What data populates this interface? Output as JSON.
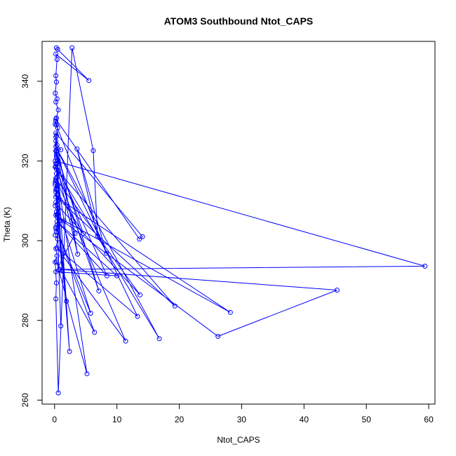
{
  "chart_data": {
    "type": "line",
    "title": "ATOM3 Southbound Ntot_CAPS",
    "xlabel": "Ntot_CAPS",
    "ylabel": "Theta (K)",
    "xlim": [
      -2,
      61
    ],
    "ylim": [
      259,
      350
    ],
    "xticks": [
      0,
      10,
      20,
      30,
      40,
      50,
      60
    ],
    "yticks": [
      260,
      280,
      300,
      320,
      340
    ],
    "grid": false,
    "color": "#0000ff",
    "series": [
      {
        "points": [
          [
            0.3,
            348.4
          ],
          [
            0.5,
            348.0
          ],
          [
            5.5,
            340.2
          ],
          [
            0.2,
            346.8
          ],
          [
            0.4,
            345.5
          ],
          [
            0.2,
            341.4
          ],
          [
            0.3,
            339.8
          ],
          [
            0.1,
            337.0
          ],
          [
            0.4,
            335.6
          ],
          [
            0.2,
            334.8
          ],
          [
            0.6,
            332.8
          ],
          [
            0.3,
            330.8
          ],
          [
            0.2,
            330.0
          ],
          [
            0.1,
            329.2
          ],
          [
            0.5,
            328.3
          ],
          [
            0.3,
            326.4
          ],
          [
            0.2,
            325.0
          ],
          [
            0.4,
            324.0
          ],
          [
            1.0,
            322.8
          ],
          [
            0.2,
            322.5
          ],
          [
            0.3,
            321.0
          ],
          [
            0.5,
            320.2
          ],
          [
            0.2,
            319.4
          ],
          [
            0.1,
            318.5
          ],
          [
            0.6,
            317.6
          ],
          [
            0.3,
            316.8
          ],
          [
            0.4,
            315.9
          ],
          [
            0.2,
            315.2
          ],
          [
            0.1,
            314.6
          ],
          [
            0.5,
            313.8
          ],
          [
            0.3,
            313.0
          ],
          [
            0.2,
            312.2
          ],
          [
            0.4,
            311.4
          ],
          [
            0.6,
            310.4
          ],
          [
            0.2,
            309.6
          ],
          [
            0.1,
            308.8
          ],
          [
            0.5,
            308.0
          ],
          [
            0.3,
            307.2
          ],
          [
            0.2,
            306.4
          ],
          [
            1.5,
            305.0
          ],
          [
            0.4,
            304.0
          ],
          [
            0.2,
            303.0
          ],
          [
            0.3,
            302.2
          ],
          [
            0.1,
            301.4
          ],
          [
            0.5,
            300.4
          ],
          [
            0.2,
            298.0
          ],
          [
            0.4,
            296.2
          ],
          [
            0.1,
            294.6
          ],
          [
            0.3,
            289.4
          ],
          [
            0.2,
            285.4
          ],
          [
            0.6,
            261.8
          ],
          [
            2.8,
            348.4
          ],
          [
            6.2,
            322.6
          ],
          [
            6.9,
            301.2
          ],
          [
            3.6,
            323.0
          ],
          [
            8.3,
            296.8
          ],
          [
            0.3,
            329.0
          ],
          [
            0.2,
            330.5
          ],
          [
            13.6,
            300.4
          ],
          [
            14.1,
            301.0
          ],
          [
            0.2,
            327.0
          ],
          [
            0.1,
            320.0
          ],
          [
            59.4,
            293.6
          ],
          [
            0.8,
            292.8
          ],
          [
            45.3,
            287.6
          ],
          [
            26.2,
            276.0
          ],
          [
            0.4,
            306.0
          ],
          [
            28.2,
            282.0
          ],
          [
            0.2,
            311.0
          ],
          [
            19.3,
            283.6
          ],
          [
            0.3,
            318.0
          ],
          [
            16.8,
            275.4
          ],
          [
            0.2,
            323.6
          ],
          [
            13.3,
            281.0
          ],
          [
            0.4,
            298.2
          ],
          [
            11.4,
            274.8
          ],
          [
            0.2,
            315.6
          ],
          [
            13.7,
            286.4
          ],
          [
            0.4,
            309.0
          ],
          [
            5.8,
            281.8
          ],
          [
            0.2,
            303.4
          ],
          [
            6.4,
            277.0
          ],
          [
            0.3,
            294.8
          ],
          [
            5.2,
            266.6
          ],
          [
            0.2,
            318.6
          ],
          [
            7.1,
            287.4
          ],
          [
            0.3,
            322.4
          ],
          [
            2.4,
            272.2
          ],
          [
            0.2,
            315.0
          ],
          [
            1.0,
            278.6
          ],
          [
            0.4,
            306.6
          ],
          [
            1.9,
            284.8
          ],
          [
            0.2,
            312.8
          ],
          [
            4.6,
            301.8
          ],
          [
            0.3,
            321.6
          ],
          [
            3.3,
            301.8
          ],
          [
            0.2,
            292.2
          ],
          [
            10.0,
            291.2
          ],
          [
            0.4,
            304.8
          ],
          [
            8.4,
            291.2
          ],
          [
            0.3,
            319.2
          ],
          [
            3.7,
            296.6
          ],
          [
            0.2,
            326.0
          ],
          [
            1.2,
            292.4
          ],
          [
            0.1,
            314.0
          ]
        ]
      }
    ]
  }
}
